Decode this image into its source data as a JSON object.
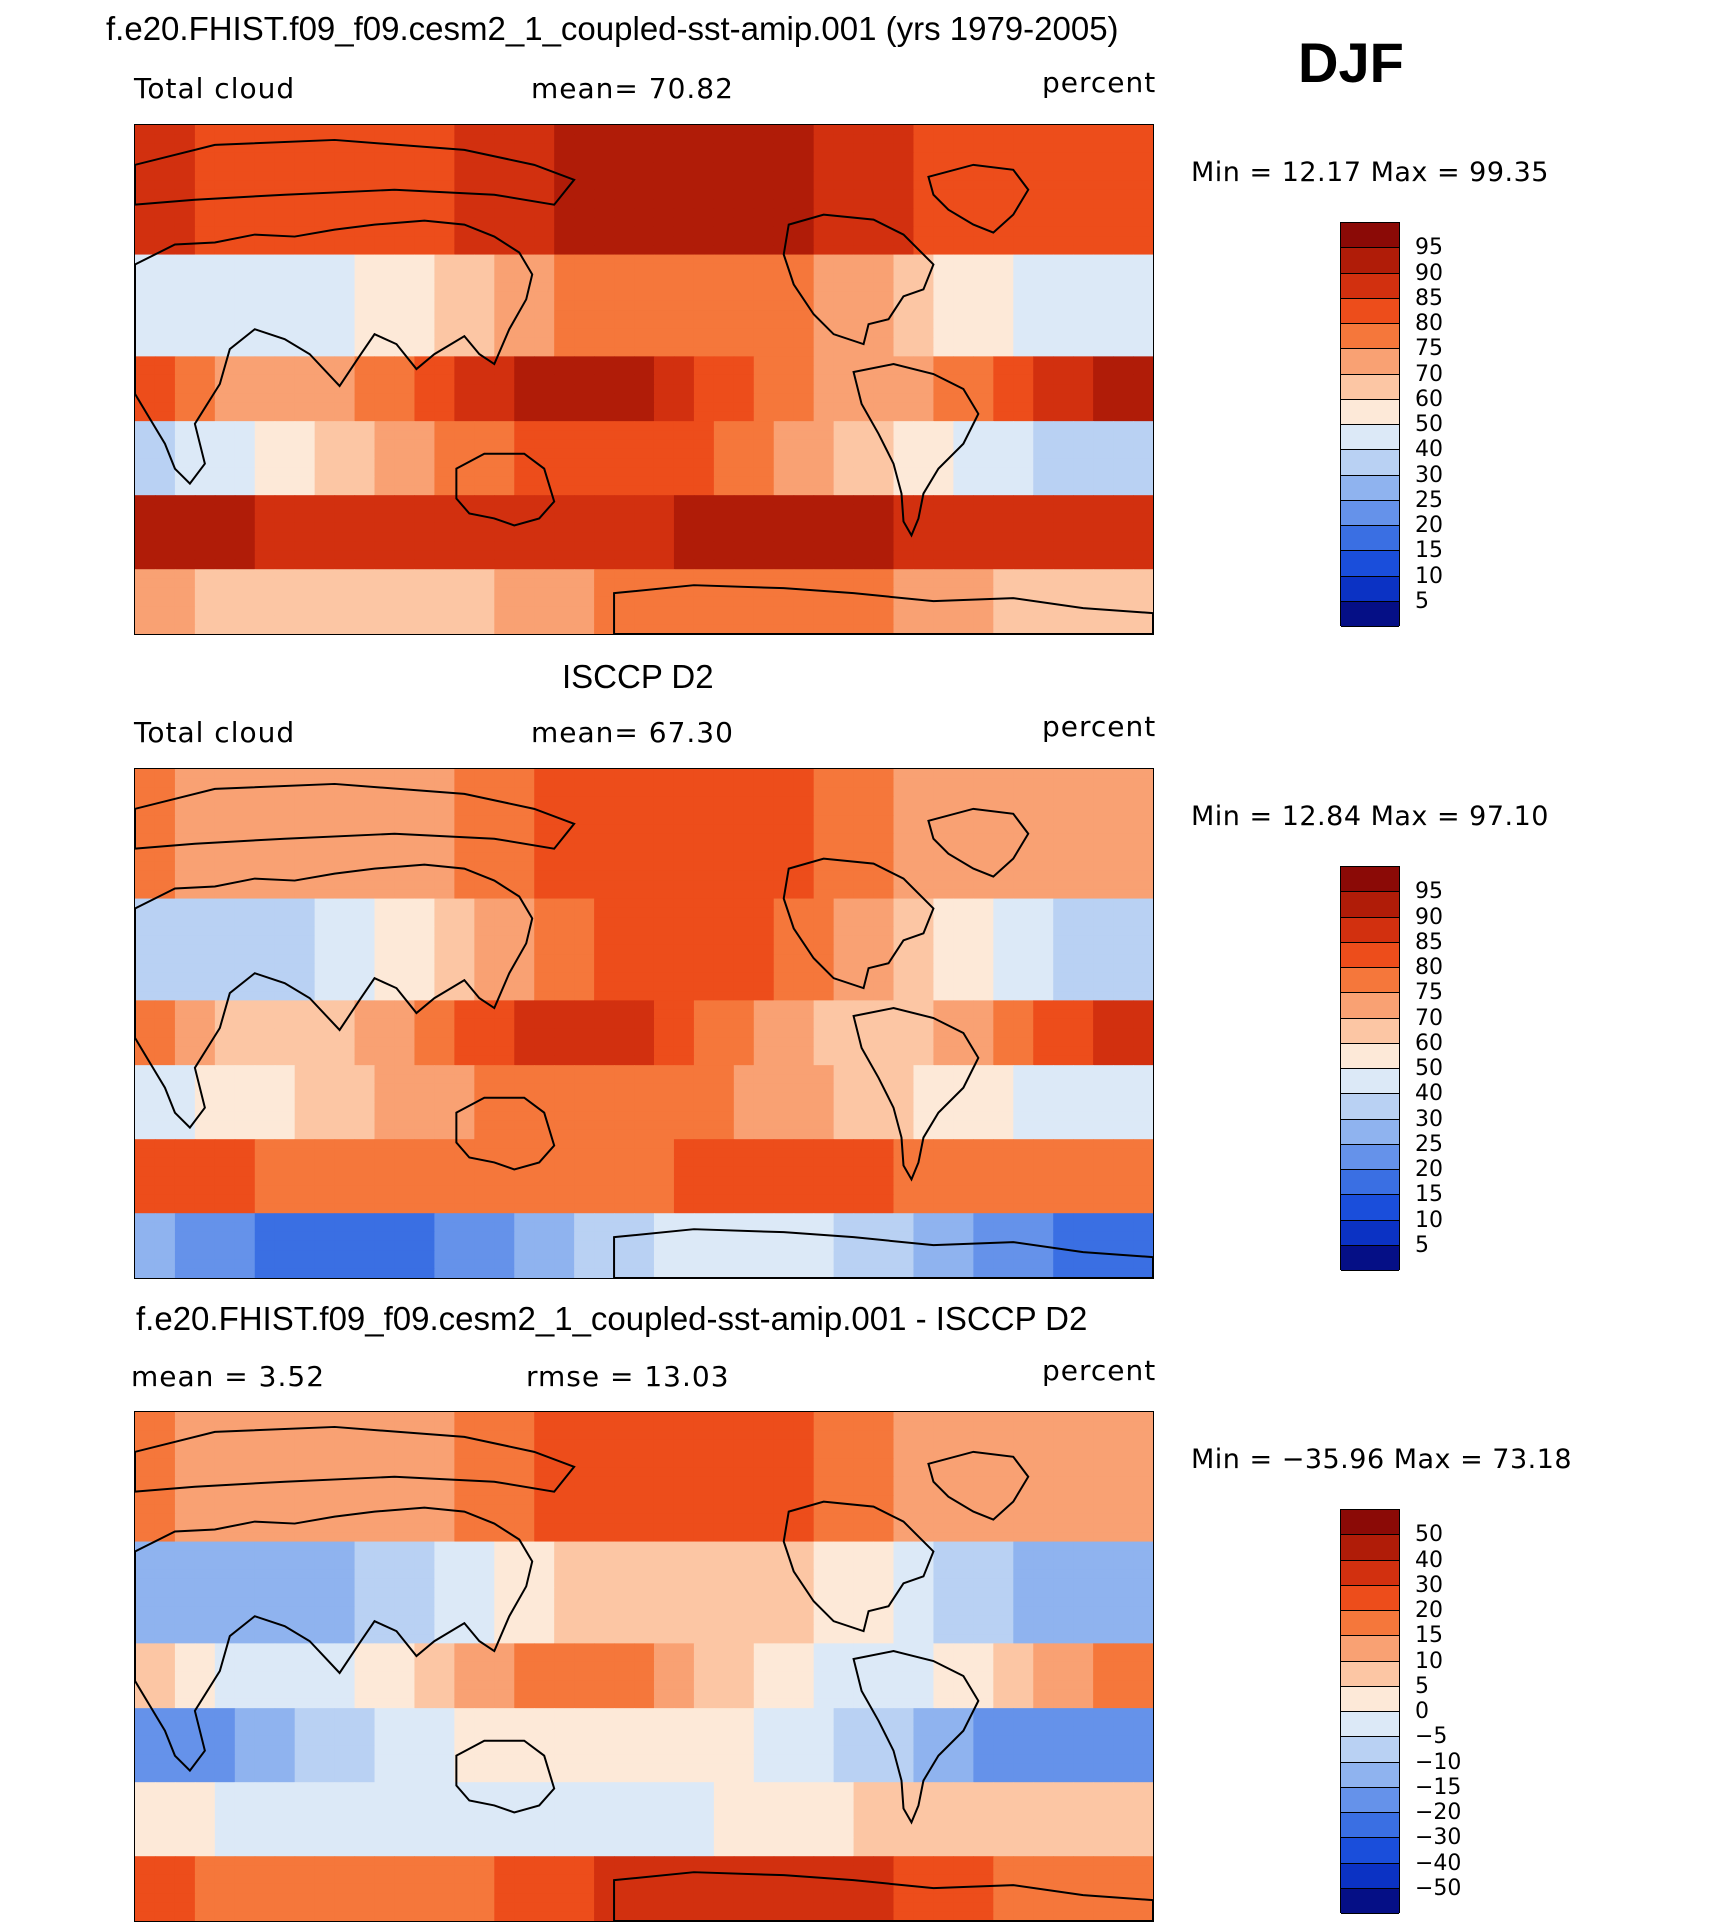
{
  "figure": {
    "season": "DJF"
  },
  "panels": [
    {
      "id": "model",
      "title": "f.e20.FHIST.f09_f09.cesm2_1_coupled-sst-amip.001 (yrs 1979-2005)",
      "left_label": "Total cloud",
      "center_label": "mean=   70.82",
      "right_label": "percent",
      "min_max": "Min =   12.17 Max =   99.35",
      "colorbar_labels": [
        "95",
        "90",
        "85",
        "80",
        "75",
        "70",
        "60",
        "50",
        "40",
        "30",
        "25",
        "20",
        "15",
        "10",
        "5"
      ]
    },
    {
      "id": "obs",
      "title": "ISCCP D2",
      "left_label": "Total cloud",
      "center_label": "mean=   67.30",
      "right_label": "percent",
      "min_max": "Min =   12.84 Max =   97.10",
      "colorbar_labels": [
        "95",
        "90",
        "85",
        "80",
        "75",
        "70",
        "60",
        "50",
        "40",
        "30",
        "25",
        "20",
        "15",
        "10",
        "5"
      ]
    },
    {
      "id": "diff",
      "title": "f.e20.FHIST.f09_f09.cesm2_1_coupled-sst-amip.001 - ISCCP D2",
      "left_label": "mean =     3.52",
      "center_label": "rmse =    13.03",
      "right_label": "percent",
      "min_max": "Min = −35.96 Max =   73.18",
      "colorbar_labels": [
        "50",
        "40",
        "30",
        "20",
        "15",
        "10",
        "5",
        "0",
        "−5",
        "−10",
        "−15",
        "−20",
        "−30",
        "−40",
        "−50"
      ]
    }
  ],
  "colors": {
    "levels_16": [
      "#8b0a06",
      "#b01c08",
      "#d2300f",
      "#ed4d1b",
      "#f5773b",
      "#f9a173",
      "#fcc6a4",
      "#fde9d8",
      "#dce9f7",
      "#b9d1f3",
      "#8fb3ef",
      "#6592ea",
      "#3a6fe3",
      "#1a4edb",
      "#0b32c4",
      "#050f86"
    ],
    "land_outline": "#000000"
  }
}
